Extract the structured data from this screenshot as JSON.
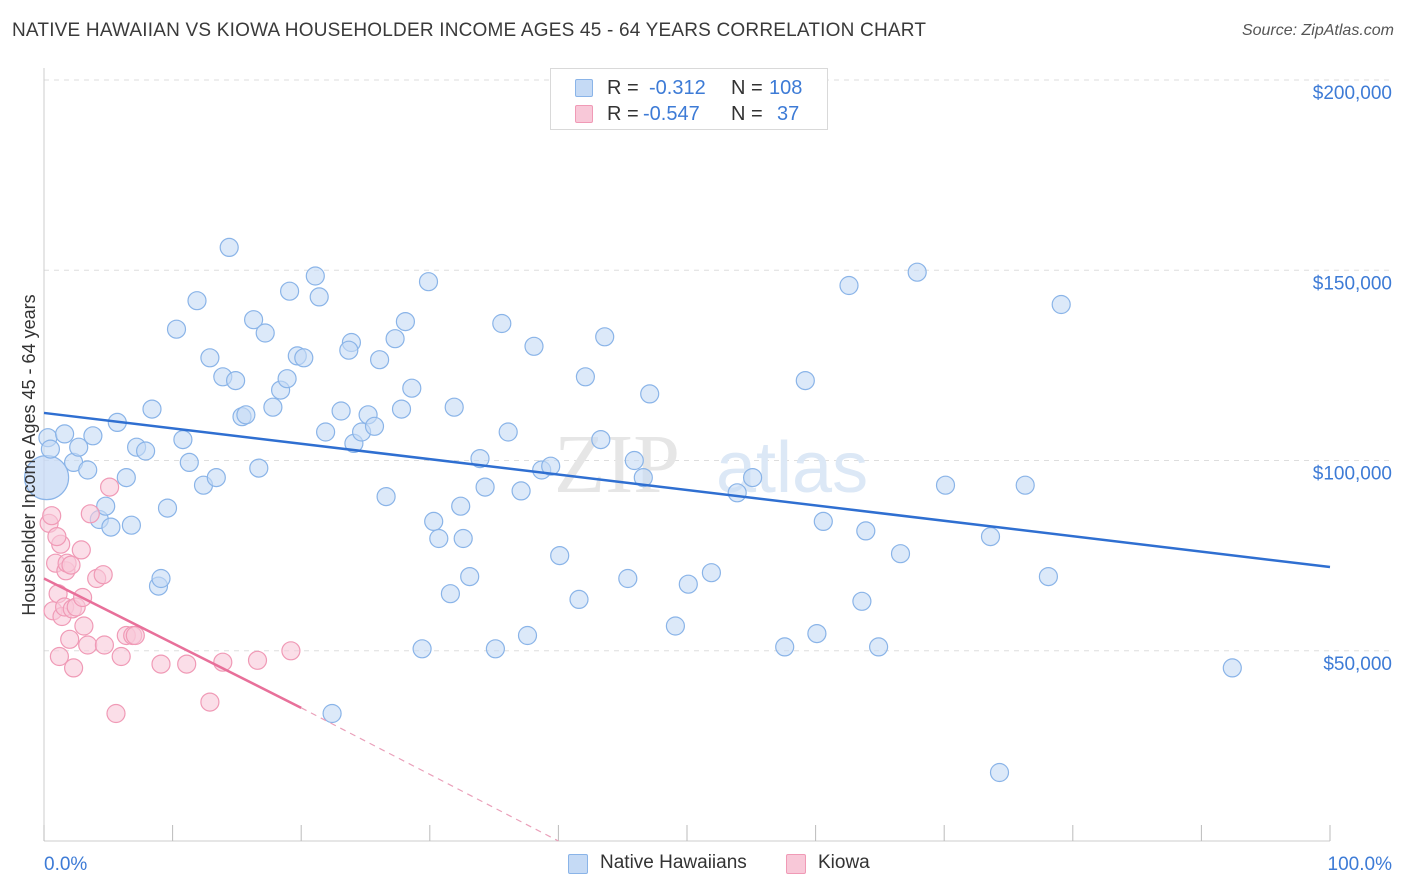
{
  "title": "NATIVE HAWAIIAN VS KIOWA HOUSEHOLDER INCOME AGES 45 - 64 YEARS CORRELATION CHART",
  "source": "Source: ZipAtlas.com",
  "watermark": {
    "zip": "ZIP",
    "atlas": "atlas"
  },
  "legend_stats": [
    {
      "r_label": "R =",
      "r_value": "-0.312",
      "n_label": "N =",
      "n_value": "108"
    },
    {
      "r_label": "R =",
      "r_value": "-0.547",
      "n_label": "N =",
      "n_value": "37"
    }
  ],
  "chart_data": {
    "type": "scatter",
    "title": "NATIVE HAWAIIAN VS KIOWA HOUSEHOLDER INCOME AGES 45 - 64 YEARS CORRELATION CHART",
    "xlabel": "",
    "ylabel": "Householder Income Ages 45 - 64 years",
    "xlim": [
      0,
      100
    ],
    "ylim": [
      0,
      200000
    ],
    "x_tick_labels": [
      "0.0%",
      "100.0%"
    ],
    "y_ticks": [
      50000,
      100000,
      150000,
      200000
    ],
    "y_tick_labels": [
      "$50,000",
      "$100,000",
      "$150,000",
      "$200,000"
    ],
    "grid": true,
    "legend_position": "bottom-center",
    "series": [
      {
        "name": "Native Hawaiians",
        "color": "#8ab4e8",
        "fill": "#c5daf5",
        "r": -0.312,
        "n": 108,
        "trend": {
          "x0": 0,
          "y0": 112500,
          "x1": 100,
          "y1": 72000,
          "dashed_to": null
        },
        "points": [
          [
            0.2,
            95500
          ],
          [
            0.3,
            106000
          ],
          [
            0.5,
            103000
          ],
          [
            1.6,
            107000
          ],
          [
            2.3,
            99500
          ],
          [
            2.7,
            103500
          ],
          [
            3.4,
            97500
          ],
          [
            3.8,
            106500
          ],
          [
            4.3,
            84500
          ],
          [
            4.8,
            88000
          ],
          [
            5.2,
            82500
          ],
          [
            5.7,
            110000
          ],
          [
            6.4,
            95500
          ],
          [
            6.8,
            83000
          ],
          [
            7.2,
            103500
          ],
          [
            7.9,
            102500
          ],
          [
            8.4,
            113500
          ],
          [
            8.9,
            67000
          ],
          [
            9.1,
            69000
          ],
          [
            9.6,
            87500
          ],
          [
            10.3,
            134500
          ],
          [
            10.8,
            105500
          ],
          [
            11.3,
            99500
          ],
          [
            11.9,
            142000
          ],
          [
            12.4,
            93500
          ],
          [
            12.9,
            127000
          ],
          [
            13.4,
            95500
          ],
          [
            13.9,
            122000
          ],
          [
            14.4,
            156000
          ],
          [
            14.9,
            121000
          ],
          [
            15.4,
            111500
          ],
          [
            15.7,
            112000
          ],
          [
            16.3,
            137000
          ],
          [
            16.7,
            98000
          ],
          [
            17.2,
            133500
          ],
          [
            17.8,
            114000
          ],
          [
            18.4,
            118500
          ],
          [
            18.9,
            121500
          ],
          [
            19.1,
            144500
          ],
          [
            19.7,
            127500
          ],
          [
            20.2,
            127000
          ],
          [
            21.1,
            148500
          ],
          [
            21.4,
            143000
          ],
          [
            21.9,
            107500
          ],
          [
            22.4,
            33500
          ],
          [
            23.1,
            113000
          ],
          [
            23.9,
            131000
          ],
          [
            23.7,
            129000
          ],
          [
            24.1,
            104500
          ],
          [
            24.7,
            107500
          ],
          [
            25.2,
            112000
          ],
          [
            25.7,
            109000
          ],
          [
            26.1,
            126500
          ],
          [
            26.6,
            90500
          ],
          [
            27.3,
            132000
          ],
          [
            27.8,
            113500
          ],
          [
            28.1,
            136500
          ],
          [
            28.6,
            119000
          ],
          [
            29.4,
            50500
          ],
          [
            29.9,
            147000
          ],
          [
            30.3,
            84000
          ],
          [
            30.7,
            79500
          ],
          [
            31.6,
            65000
          ],
          [
            31.9,
            114000
          ],
          [
            32.4,
            88000
          ],
          [
            32.6,
            79500
          ],
          [
            33.1,
            69500
          ],
          [
            33.9,
            100500
          ],
          [
            34.3,
            93000
          ],
          [
            35.1,
            50500
          ],
          [
            35.6,
            136000
          ],
          [
            36.1,
            107500
          ],
          [
            37.1,
            92000
          ],
          [
            37.6,
            54000
          ],
          [
            38.1,
            130000
          ],
          [
            38.7,
            97500
          ],
          [
            39.4,
            98500
          ],
          [
            40.1,
            75000
          ],
          [
            41.6,
            63500
          ],
          [
            42.1,
            122000
          ],
          [
            43.3,
            105500
          ],
          [
            43.6,
            132500
          ],
          [
            45.4,
            69000
          ],
          [
            45.9,
            100000
          ],
          [
            46.6,
            95500
          ],
          [
            47.1,
            117500
          ],
          [
            49.1,
            56500
          ],
          [
            50.1,
            67500
          ],
          [
            51.9,
            70500
          ],
          [
            53.9,
            91500
          ],
          [
            55.1,
            95500
          ],
          [
            57.6,
            51000
          ],
          [
            59.2,
            121000
          ],
          [
            60.1,
            54500
          ],
          [
            60.6,
            84000
          ],
          [
            62.6,
            146000
          ],
          [
            63.6,
            63000
          ],
          [
            63.9,
            81500
          ],
          [
            64.9,
            51000
          ],
          [
            66.6,
            75500
          ],
          [
            67.9,
            149500
          ],
          [
            70.1,
            93500
          ],
          [
            73.6,
            80000
          ],
          [
            74.3,
            18000
          ],
          [
            76.3,
            93500
          ],
          [
            78.1,
            69500
          ],
          [
            79.1,
            141000
          ],
          [
            92.4,
            45500
          ]
        ]
      },
      {
        "name": "Kiowa",
        "color": "#f09ab6",
        "fill": "#f8c8d8",
        "r": -0.547,
        "n": 37,
        "trend": {
          "x0": 0,
          "y0": 69000,
          "x1": 20,
          "y1": 35000,
          "dashed_to": [
            40,
            0
          ]
        },
        "points": [
          [
            0.4,
            83500
          ],
          [
            0.6,
            85500
          ],
          [
            0.7,
            60500
          ],
          [
            0.9,
            73000
          ],
          [
            1.1,
            65000
          ],
          [
            1.2,
            48500
          ],
          [
            1.3,
            78000
          ],
          [
            1.4,
            59000
          ],
          [
            1.6,
            61500
          ],
          [
            1.7,
            71000
          ],
          [
            1.8,
            73000
          ],
          [
            2.0,
            53000
          ],
          [
            2.1,
            72500
          ],
          [
            2.2,
            61000
          ],
          [
            2.3,
            45500
          ],
          [
            2.5,
            61500
          ],
          [
            2.9,
            76500
          ],
          [
            3.1,
            56500
          ],
          [
            3.4,
            51500
          ],
          [
            3.6,
            86000
          ],
          [
            4.1,
            69000
          ],
          [
            4.6,
            70000
          ],
          [
            4.7,
            51500
          ],
          [
            5.1,
            93000
          ],
          [
            5.6,
            33500
          ],
          [
            6.0,
            48500
          ],
          [
            6.4,
            54000
          ],
          [
            6.9,
            54000
          ],
          [
            7.1,
            54000
          ],
          [
            9.1,
            46500
          ],
          [
            11.1,
            46500
          ],
          [
            12.9,
            36500
          ],
          [
            13.9,
            47000
          ],
          [
            16.6,
            47500
          ],
          [
            19.2,
            50000
          ],
          [
            1.0,
            80000
          ],
          [
            3.0,
            64000
          ]
        ]
      }
    ]
  }
}
